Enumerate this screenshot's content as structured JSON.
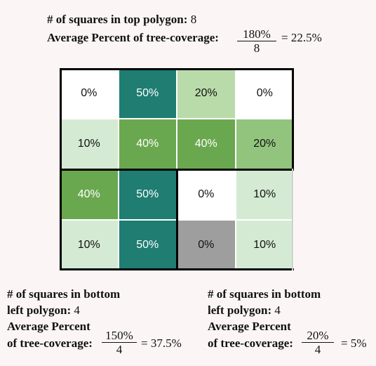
{
  "top": {
    "count_label": "# of squares in top polygon:",
    "count_value": "8",
    "avg_label": "Average Percent of tree-coverage:",
    "numerator": "180%",
    "denominator": "8",
    "result": "= 22.5%"
  },
  "bottom_left": {
    "line1": "# of squares in bottom",
    "line2_label": "left polygon:",
    "line2_value": "4",
    "line3": "Average Percent",
    "line4": "of tree-coverage:",
    "numerator": "150%",
    "denominator": "4",
    "result": "= 37.5%"
  },
  "bottom_right": {
    "line1": "# of squares in bottom",
    "line2_label": "left polygon:",
    "line2_value": "4",
    "line3": "Average Percent",
    "line4": "of tree-coverage:",
    "numerator": "20%",
    "denominator": "4",
    "result": "= 5%"
  },
  "grid": {
    "colors": {
      "white": "#ffffff",
      "light": "#d5ead3",
      "pale": "#b9dbaa",
      "mid": "#93c47d",
      "green": "#6aa84f",
      "teal": "#1f7d72",
      "gray": "#9e9e9e"
    },
    "rows": [
      [
        {
          "label": "0%",
          "fill": "white"
        },
        {
          "label": "50%",
          "fill": "teal"
        },
        {
          "label": "20%",
          "fill": "pale"
        },
        {
          "label": "0%",
          "fill": "white"
        }
      ],
      [
        {
          "label": "10%",
          "fill": "light"
        },
        {
          "label": "40%",
          "fill": "green"
        },
        {
          "label": "40%",
          "fill": "green"
        },
        {
          "label": "20%",
          "fill": "mid"
        }
      ],
      [
        {
          "label": "40%",
          "fill": "green"
        },
        {
          "label": "50%",
          "fill": "teal"
        },
        {
          "label": "0%",
          "fill": "white"
        },
        {
          "label": "10%",
          "fill": "light"
        }
      ],
      [
        {
          "label": "10%",
          "fill": "light"
        },
        {
          "label": "50%",
          "fill": "teal"
        },
        {
          "label": "0%",
          "fill": "gray"
        },
        {
          "label": "10%",
          "fill": "light"
        }
      ]
    ]
  }
}
